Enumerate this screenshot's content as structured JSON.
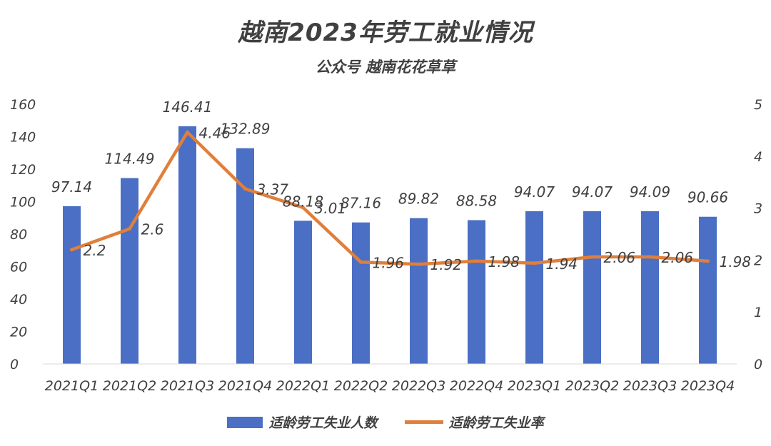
{
  "chart_data": {
    "type": "bar",
    "title": "越南2023年劳工就业情况",
    "subtitle": "公众号 越南花花草草",
    "categories": [
      "2021Q1",
      "2021Q2",
      "2021Q3",
      "2021Q4",
      "2022Q1",
      "2022Q2",
      "2022Q3",
      "2022Q4",
      "2023Q1",
      "2023Q2",
      "2023Q3",
      "2023Q4"
    ],
    "series": [
      {
        "name": "适龄劳工失业人数",
        "type": "bar",
        "axis": "left",
        "color": "#4a6fc4",
        "values": [
          97.14,
          114.49,
          146.41,
          132.89,
          88.18,
          87.16,
          89.82,
          88.58,
          94.07,
          94.07,
          94.09,
          90.66
        ],
        "labels": [
          "97.14",
          "114.49",
          "146.41",
          "132.89",
          "88.18",
          "87.16",
          "89.82",
          "88.58",
          "94.07",
          "94.07",
          "94.09",
          "90.66"
        ]
      },
      {
        "name": "适龄劳工失业率",
        "type": "line",
        "axis": "right",
        "color": "#e07f3b",
        "values": [
          2.2,
          2.6,
          4.46,
          3.37,
          3.01,
          1.96,
          1.92,
          1.98,
          1.94,
          2.06,
          2.06,
          1.98
        ],
        "labels": [
          "2.2",
          "2.6",
          "4.46",
          "3.37",
          "3.01",
          "1.96",
          "1.92",
          "1.98",
          "1.94",
          "2.06",
          "2.06",
          "1.98"
        ]
      }
    ],
    "y_left": {
      "min": 0,
      "max": 160,
      "ticks": [
        "0",
        "20",
        "40",
        "60",
        "80",
        "100",
        "120",
        "140",
        "160"
      ]
    },
    "y_right": {
      "min": 0,
      "max": 5,
      "ticks": [
        "0",
        "1",
        "2",
        "3",
        "4",
        "5"
      ]
    },
    "grid": false,
    "legend_position": "bottom"
  }
}
